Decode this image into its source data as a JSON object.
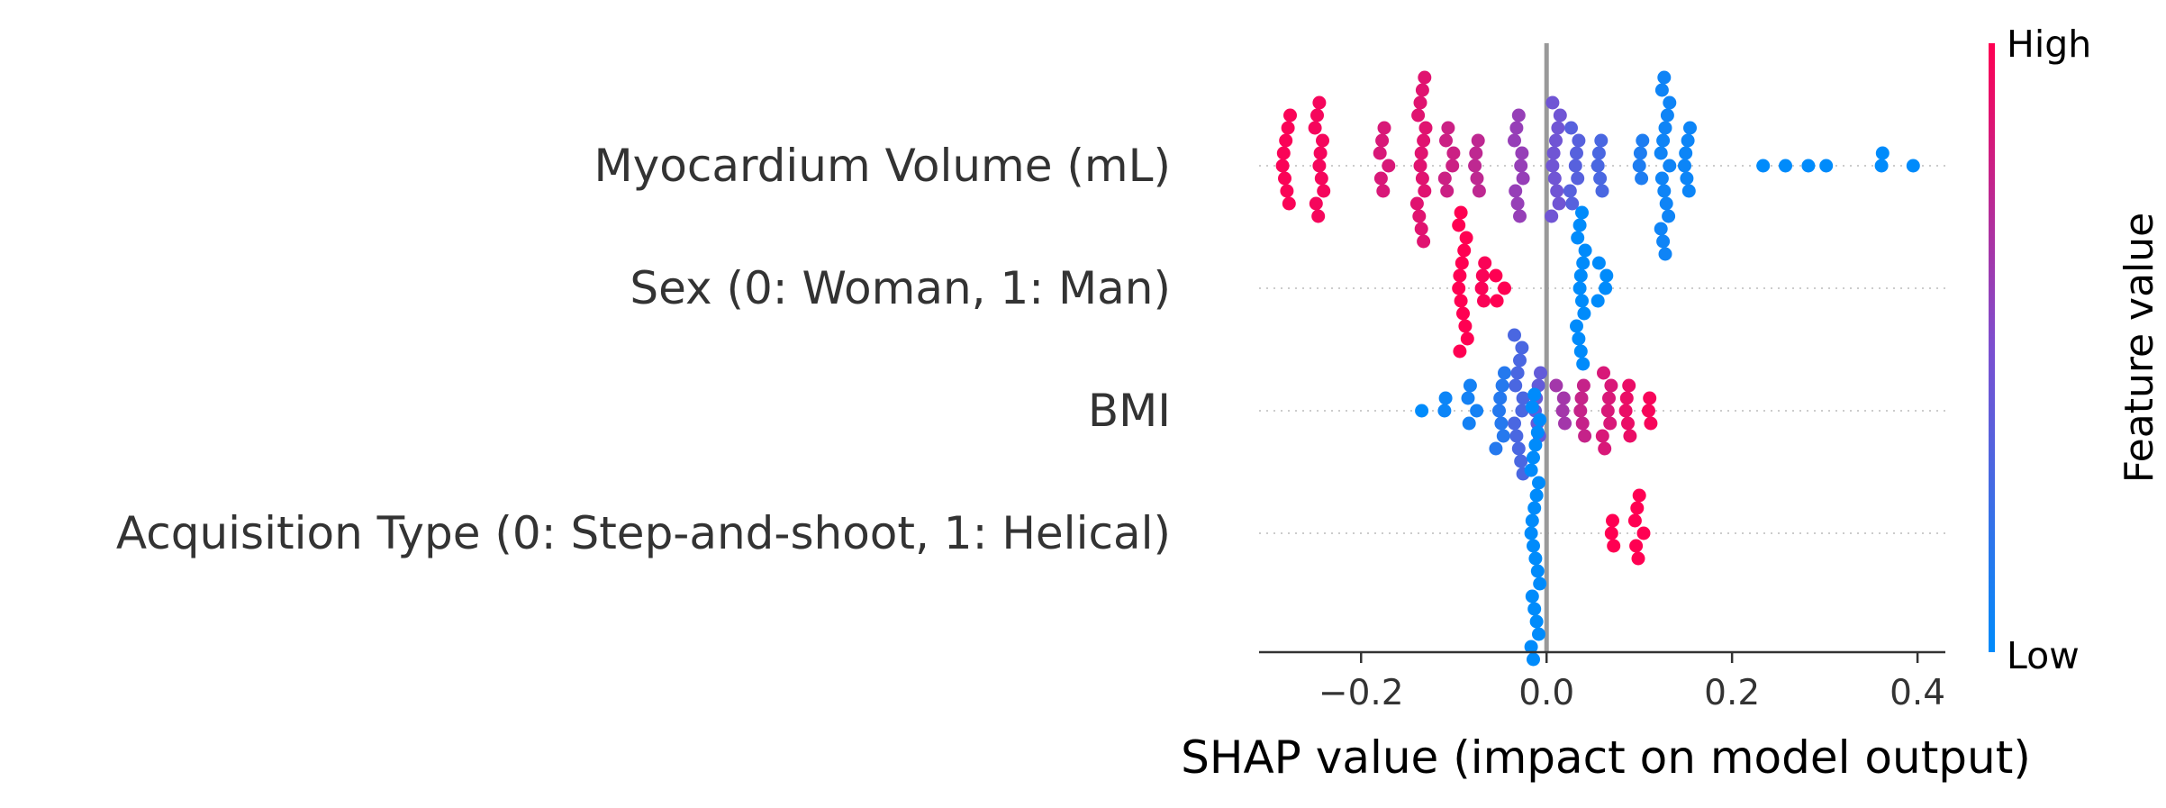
{
  "chart_data": {
    "type": "scatter",
    "subtype": "shap-beeswarm",
    "xlabel": "SHAP value (impact on model output)",
    "xlim": [
      -0.31,
      0.43
    ],
    "xticks": [
      -0.2,
      0.0,
      0.2,
      0.4
    ],
    "xtick_labels": [
      "−0.2",
      "0.0",
      "0.2",
      "0.4"
    ],
    "zero_line": true,
    "colorbar": {
      "title": "Feature value",
      "high_label": "High",
      "low_label": "Low",
      "high_color": "#ff0052",
      "low_color": "#008bfb"
    },
    "features": [
      {
        "name": "Myocardium Volume (mL)",
        "clusters": [
          {
            "x": -0.28,
            "n": 8,
            "fv": 0.98
          },
          {
            "x": -0.245,
            "n": 10,
            "fv": 0.96
          },
          {
            "x": -0.175,
            "n": 6,
            "fv": 0.85
          },
          {
            "x": -0.135,
            "n": 14,
            "fv": 0.88
          },
          {
            "x": -0.105,
            "n": 6,
            "fv": 0.8
          },
          {
            "x": -0.075,
            "n": 5,
            "fv": 0.75
          },
          {
            "x": -0.03,
            "n": 9,
            "fv": 0.6
          },
          {
            "x": 0.01,
            "n": 10,
            "fv": 0.45
          },
          {
            "x": 0.03,
            "n": 7,
            "fv": 0.35
          },
          {
            "x": 0.06,
            "n": 5,
            "fv": 0.3
          },
          {
            "x": 0.1,
            "n": 4,
            "fv": 0.12
          },
          {
            "x": 0.128,
            "n": 15,
            "fv": 0.06
          },
          {
            "x": 0.15,
            "n": 6,
            "fv": 0.05
          },
          {
            "x": 0.23,
            "n": 1,
            "fv": 0.0
          },
          {
            "x": 0.26,
            "n": 1,
            "fv": 0.0
          },
          {
            "x": 0.28,
            "n": 1,
            "fv": 0.0
          },
          {
            "x": 0.305,
            "n": 1,
            "fv": 0.0
          },
          {
            "x": 0.36,
            "n": 2,
            "fv": 0.0
          },
          {
            "x": 0.4,
            "n": 1,
            "fv": 0.0
          }
        ]
      },
      {
        "name": "Sex (0: Woman, 1: Man)",
        "clusters": [
          {
            "x": -0.09,
            "n": 12,
            "fv": 1.0
          },
          {
            "x": -0.07,
            "n": 4,
            "fv": 0.98
          },
          {
            "x": -0.05,
            "n": 3,
            "fv": 1.0
          },
          {
            "x": 0.037,
            "n": 13,
            "fv": 0.0
          },
          {
            "x": 0.06,
            "n": 4,
            "fv": 0.0
          }
        ]
      },
      {
        "name": "BMI",
        "clusters": [
          {
            "x": -0.13,
            "n": 1,
            "fv": 0.0
          },
          {
            "x": -0.11,
            "n": 2,
            "fv": 0.05
          },
          {
            "x": -0.08,
            "n": 4,
            "fv": 0.08
          },
          {
            "x": -0.05,
            "n": 7,
            "fv": 0.15
          },
          {
            "x": -0.03,
            "n": 12,
            "fv": 0.3
          },
          {
            "x": -0.01,
            "n": 6,
            "fv": 0.4
          },
          {
            "x": 0.015,
            "n": 4,
            "fv": 0.65
          },
          {
            "x": 0.04,
            "n": 5,
            "fv": 0.78
          },
          {
            "x": 0.065,
            "n": 7,
            "fv": 0.85
          },
          {
            "x": 0.09,
            "n": 5,
            "fv": 0.92
          },
          {
            "x": 0.11,
            "n": 3,
            "fv": 0.97
          }
        ]
      },
      {
        "name": "Acquisition Type (0: Step-and-shoot, 1: Helical)",
        "clusters": [
          {
            "x": -0.012,
            "n": 22,
            "fv": 0.0
          },
          {
            "x": 0.07,
            "n": 3,
            "fv": 1.0
          },
          {
            "x": 0.1,
            "n": 6,
            "fv": 1.0
          }
        ]
      }
    ]
  }
}
